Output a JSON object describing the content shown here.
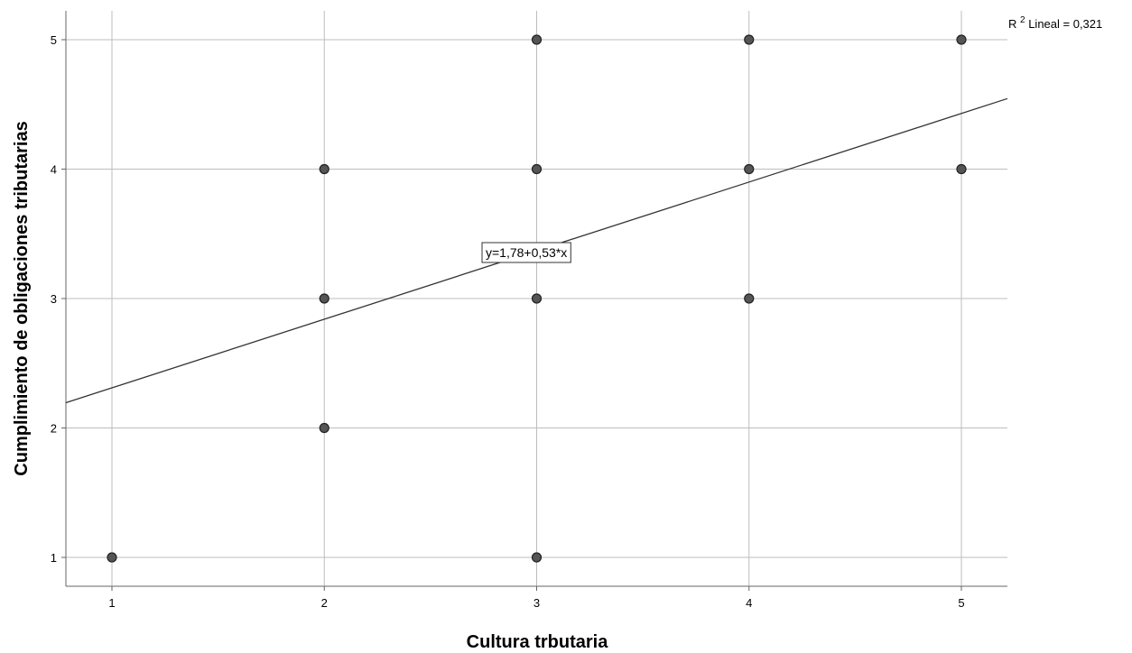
{
  "chart_data": {
    "type": "scatter",
    "title": "",
    "xlabel": "Cultura trbutaria",
    "ylabel": "Cumplimiento de obligaciones tributarias",
    "x_ticks": [
      1,
      2,
      3,
      4,
      5
    ],
    "y_ticks": [
      1,
      2,
      3,
      4,
      5
    ],
    "grid": true,
    "points": [
      {
        "x": 1,
        "y": 1
      },
      {
        "x": 2,
        "y": 2
      },
      {
        "x": 2,
        "y": 3
      },
      {
        "x": 2,
        "y": 4
      },
      {
        "x": 3,
        "y": 1
      },
      {
        "x": 3,
        "y": 3
      },
      {
        "x": 3,
        "y": 4
      },
      {
        "x": 3,
        "y": 5
      },
      {
        "x": 4,
        "y": 3
      },
      {
        "x": 4,
        "y": 4
      },
      {
        "x": 4,
        "y": 5
      },
      {
        "x": 5,
        "y": 4
      },
      {
        "x": 5,
        "y": 5
      }
    ],
    "fit_line": {
      "intercept": 1.78,
      "slope": 0.53
    },
    "equation_label": "y=1,78+0,53*x",
    "r2_label_prefix": "R",
    "r2_label_sup": "2",
    "r2_label_suffix": " Lineal = 0,321",
    "colors": {
      "point_fill": "#555555",
      "point_stroke": "#222222",
      "grid": "#bdbdbd",
      "axis": "#666666",
      "line": "#333333"
    }
  }
}
